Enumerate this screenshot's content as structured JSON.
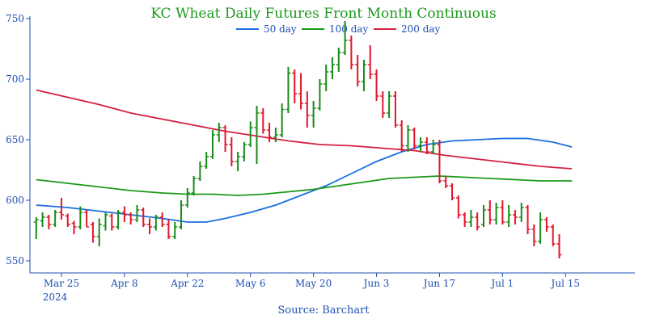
{
  "chart_data": {
    "type": "line",
    "title": "KC Wheat Daily Futures Front Month Continuous",
    "source": "Source: Barchart",
    "year_label": "2024",
    "ylim": [
      540,
      752
    ],
    "yticks": [
      550,
      600,
      650,
      700,
      750
    ],
    "xlim": [
      -1,
      95
    ],
    "xticks": [
      {
        "label": "Mar 25",
        "i": 4
      },
      {
        "label": "Apr 8",
        "i": 14
      },
      {
        "label": "Apr 22",
        "i": 24
      },
      {
        "label": "May 6",
        "i": 34
      },
      {
        "label": "May 20",
        "i": 44
      },
      {
        "label": "Jun 3",
        "i": 54
      },
      {
        "label": "Jun 17",
        "i": 64
      },
      {
        "label": "Jul 1",
        "i": 74
      },
      {
        "label": "Jul 15",
        "i": 84
      }
    ],
    "grid": false,
    "legend_position": "top",
    "colors": {
      "up": "#1a8a1a",
      "down": "#e0162b",
      "ma50": "#1a6fe0",
      "ma100": "#1a9a1a",
      "ma200": "#d42040",
      "axis": "#1f4fb4",
      "title": "#1a9a1a"
    },
    "ohlc": [
      [
        582,
        586,
        568,
        584
      ],
      [
        583,
        590,
        578,
        586
      ],
      [
        586,
        588,
        576,
        580
      ],
      [
        580,
        592,
        578,
        590
      ],
      [
        590,
        602,
        584,
        588
      ],
      [
        587,
        589,
        578,
        580
      ],
      [
        581,
        583,
        572,
        578
      ],
      [
        578,
        595,
        576,
        590
      ],
      [
        590,
        592,
        578,
        578
      ],
      [
        580,
        582,
        565,
        570
      ],
      [
        570,
        585,
        562,
        580
      ],
      [
        579,
        590,
        575,
        588
      ],
      [
        587,
        589,
        575,
        578
      ],
      [
        578,
        592,
        576,
        590
      ],
      [
        590,
        595,
        582,
        588
      ],
      [
        588,
        590,
        580,
        584
      ],
      [
        584,
        596,
        582,
        592
      ],
      [
        592,
        594,
        578,
        580
      ],
      [
        580,
        585,
        572,
        578
      ],
      [
        578,
        588,
        575,
        586
      ],
      [
        586,
        590,
        578,
        580
      ],
      [
        580,
        584,
        568,
        570
      ],
      [
        570,
        582,
        568,
        578
      ],
      [
        578,
        600,
        576,
        596
      ],
      [
        596,
        610,
        594,
        606
      ],
      [
        606,
        620,
        604,
        618
      ],
      [
        618,
        632,
        616,
        628
      ],
      [
        628,
        640,
        626,
        636
      ],
      [
        636,
        658,
        634,
        654
      ],
      [
        654,
        664,
        648,
        660
      ],
      [
        660,
        662,
        640,
        646
      ],
      [
        646,
        652,
        628,
        632
      ],
      [
        632,
        640,
        624,
        636
      ],
      [
        636,
        648,
        632,
        646
      ],
      [
        646,
        665,
        644,
        660
      ],
      [
        660,
        678,
        630,
        672
      ],
      [
        672,
        676,
        655,
        658
      ],
      [
        658,
        664,
        648,
        652
      ],
      [
        652,
        660,
        648,
        654
      ],
      [
        654,
        680,
        652,
        675
      ],
      [
        675,
        710,
        672,
        705
      ],
      [
        705,
        708,
        680,
        688
      ],
      [
        688,
        705,
        675,
        680
      ],
      [
        680,
        690,
        660,
        670
      ],
      [
        670,
        682,
        660,
        676
      ],
      [
        676,
        700,
        674,
        696
      ],
      [
        696,
        712,
        690,
        706
      ],
      [
        706,
        718,
        700,
        712
      ],
      [
        712,
        726,
        706,
        722
      ],
      [
        722,
        748,
        720,
        732
      ],
      [
        732,
        736,
        708,
        712
      ],
      [
        712,
        720,
        694,
        698
      ],
      [
        698,
        716,
        690,
        712
      ],
      [
        712,
        728,
        700,
        704
      ],
      [
        704,
        708,
        682,
        686
      ],
      [
        686,
        690,
        668,
        672
      ],
      [
        672,
        690,
        668,
        686
      ],
      [
        686,
        690,
        660,
        662
      ],
      [
        662,
        666,
        640,
        645
      ],
      [
        645,
        662,
        640,
        658
      ],
      [
        658,
        660,
        642,
        645
      ],
      [
        645,
        652,
        640,
        648
      ],
      [
        648,
        652,
        638,
        640
      ],
      [
        640,
        650,
        638,
        646
      ],
      [
        646,
        650,
        614,
        616
      ],
      [
        616,
        620,
        610,
        612
      ],
      [
        612,
        614,
        600,
        602
      ],
      [
        602,
        604,
        585,
        588
      ],
      [
        588,
        590,
        578,
        582
      ],
      [
        582,
        592,
        578,
        586
      ],
      [
        586,
        590,
        575,
        578
      ],
      [
        580,
        596,
        578,
        592
      ],
      [
        592,
        600,
        580,
        584
      ],
      [
        584,
        598,
        580,
        594
      ],
      [
        594,
        600,
        580,
        582
      ],
      [
        582,
        596,
        578,
        588
      ],
      [
        588,
        592,
        580,
        586
      ],
      [
        586,
        598,
        582,
        594
      ],
      [
        594,
        596,
        572,
        576
      ],
      [
        576,
        580,
        562,
        566
      ],
      [
        566,
        590,
        564,
        584
      ],
      [
        584,
        586,
        574,
        578
      ],
      [
        578,
        580,
        562,
        564
      ],
      [
        564,
        572,
        552,
        555
      ]
    ],
    "series": [
      {
        "name": "50 day",
        "points": [
          [
            0,
            596
          ],
          [
            5,
            594
          ],
          [
            10,
            591
          ],
          [
            15,
            588
          ],
          [
            20,
            585
          ],
          [
            24,
            582
          ],
          [
            27,
            582
          ],
          [
            30,
            585
          ],
          [
            34,
            590
          ],
          [
            38,
            596
          ],
          [
            42,
            604
          ],
          [
            46,
            612
          ],
          [
            50,
            622
          ],
          [
            54,
            632
          ],
          [
            58,
            640
          ],
          [
            62,
            646
          ],
          [
            66,
            649
          ],
          [
            70,
            650
          ],
          [
            74,
            651
          ],
          [
            78,
            651
          ],
          [
            82,
            648
          ],
          [
            85,
            644
          ]
        ]
      },
      {
        "name": "100 day",
        "points": [
          [
            0,
            617
          ],
          [
            5,
            614
          ],
          [
            10,
            611
          ],
          [
            15,
            608
          ],
          [
            20,
            606
          ],
          [
            24,
            605
          ],
          [
            28,
            605
          ],
          [
            32,
            604
          ],
          [
            36,
            605
          ],
          [
            40,
            607
          ],
          [
            44,
            609
          ],
          [
            48,
            612
          ],
          [
            52,
            615
          ],
          [
            56,
            618
          ],
          [
            60,
            619
          ],
          [
            64,
            620
          ],
          [
            68,
            619
          ],
          [
            72,
            618
          ],
          [
            76,
            617
          ],
          [
            80,
            616
          ],
          [
            85,
            616
          ]
        ]
      },
      {
        "name": "200 day",
        "points": [
          [
            0,
            691
          ],
          [
            5,
            685
          ],
          [
            10,
            679
          ],
          [
            15,
            672
          ],
          [
            20,
            667
          ],
          [
            25,
            662
          ],
          [
            30,
            657
          ],
          [
            35,
            653
          ],
          [
            40,
            649
          ],
          [
            45,
            646
          ],
          [
            50,
            645
          ],
          [
            55,
            643
          ],
          [
            60,
            641
          ],
          [
            65,
            637
          ],
          [
            70,
            634
          ],
          [
            75,
            631
          ],
          [
            80,
            628
          ],
          [
            85,
            626
          ]
        ]
      }
    ]
  }
}
